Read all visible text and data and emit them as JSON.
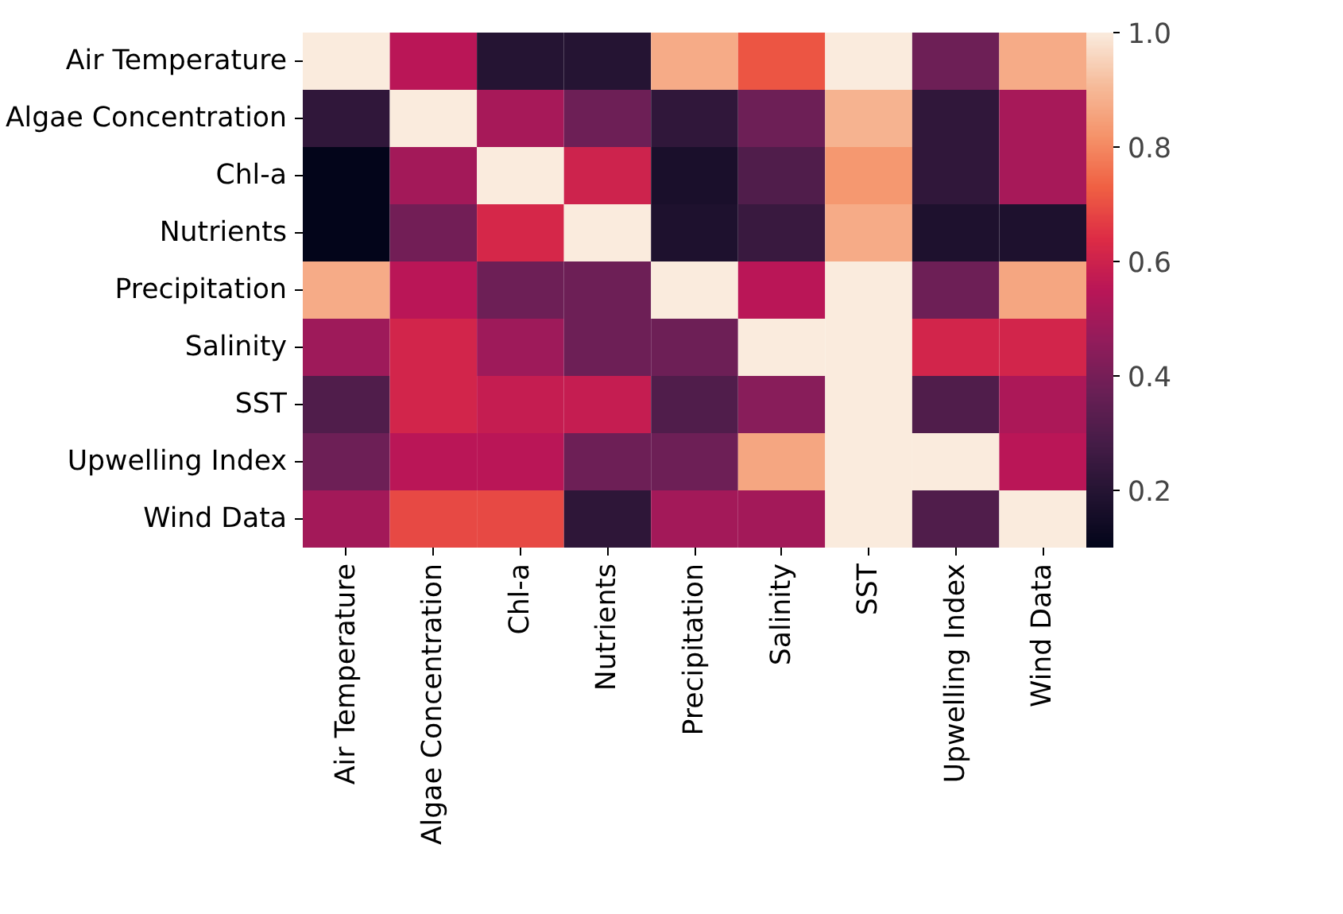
{
  "chart_data": {
    "type": "heatmap",
    "categories": [
      "Air Temperature",
      "Algae Concentration",
      "Chl-a",
      "Nutrients",
      "Precipitation",
      "Salinity",
      "SST",
      "Upwelling Index",
      "Wind Data"
    ],
    "y_categories": [
      "Air Temperature",
      "Algae Concentration",
      "Chl-a",
      "Nutrients",
      "Precipitation",
      "Salinity",
      "SST",
      "Upwelling Index",
      "Wind Data"
    ],
    "cells": [
      [
        1.0,
        0.55,
        0.2,
        0.2,
        0.87,
        0.71,
        1.0,
        0.38,
        0.87
      ],
      [
        0.23,
        1.0,
        0.51,
        0.38,
        0.23,
        0.38,
        0.89,
        0.23,
        0.51
      ],
      [
        0.1,
        0.5,
        1.0,
        0.6,
        0.17,
        0.31,
        0.83,
        0.23,
        0.51
      ],
      [
        0.1,
        0.39,
        0.62,
        1.0,
        0.18,
        0.25,
        0.87,
        0.18,
        0.18
      ],
      [
        0.87,
        0.55,
        0.38,
        0.38,
        1.0,
        0.55,
        1.0,
        0.38,
        0.86
      ],
      [
        0.49,
        0.61,
        0.49,
        0.38,
        0.38,
        1.0,
        1.0,
        0.61,
        0.61
      ],
      [
        0.31,
        0.61,
        0.58,
        0.58,
        0.31,
        0.44,
        1.0,
        0.31,
        0.52
      ],
      [
        0.38,
        0.55,
        0.55,
        0.38,
        0.38,
        0.86,
        1.0,
        1.0,
        0.55
      ],
      [
        0.5,
        0.69,
        0.69,
        0.22,
        0.5,
        0.5,
        1.0,
        0.31,
        1.0
      ]
    ],
    "clim": [
      0.1,
      1.0
    ],
    "cticks": [
      {
        "value": 0.2,
        "label": "0.2"
      },
      {
        "value": 0.4,
        "label": "0.4"
      },
      {
        "value": 0.6,
        "label": "0.6"
      },
      {
        "value": 0.8,
        "label": "0.8"
      },
      {
        "value": 1.0,
        "label": "1.0"
      }
    ]
  }
}
